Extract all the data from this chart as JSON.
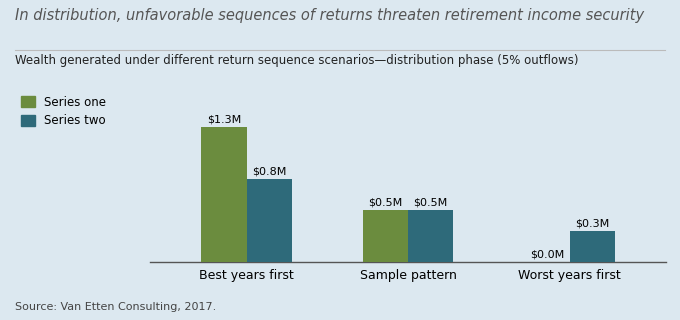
{
  "title": "In distribution, unfavorable sequences of returns threaten retirement income security",
  "subtitle": "Wealth generated under different return sequence scenarios—distribution phase (5% outflows)",
  "source": "Source: Van Etten Consulting, 2017.",
  "categories": [
    "Best years first",
    "Sample pattern",
    "Worst years first"
  ],
  "series_one": [
    1.3,
    0.5,
    0.0
  ],
  "series_two": [
    0.8,
    0.5,
    0.3
  ],
  "series_one_label": "Series one",
  "series_two_label": "Series two",
  "series_one_color": "#6b8c3e",
  "series_two_color": "#2e6a7a",
  "bar_labels_one": [
    "$1.3M",
    "$0.5M",
    "$0.0M"
  ],
  "bar_labels_two": [
    "$0.8M",
    "$0.5M",
    "$0.3M"
  ],
  "background_color": "#dce8f0",
  "ylim": [
    0,
    1.6
  ],
  "bar_width": 0.28,
  "title_fontsize": 10.5,
  "subtitle_fontsize": 8.5,
  "source_fontsize": 8,
  "legend_fontsize": 8.5,
  "label_fontsize": 8.0,
  "tick_fontsize": 9,
  "title_color": "#555555",
  "subtitle_color": "#222222",
  "source_color": "#444444"
}
